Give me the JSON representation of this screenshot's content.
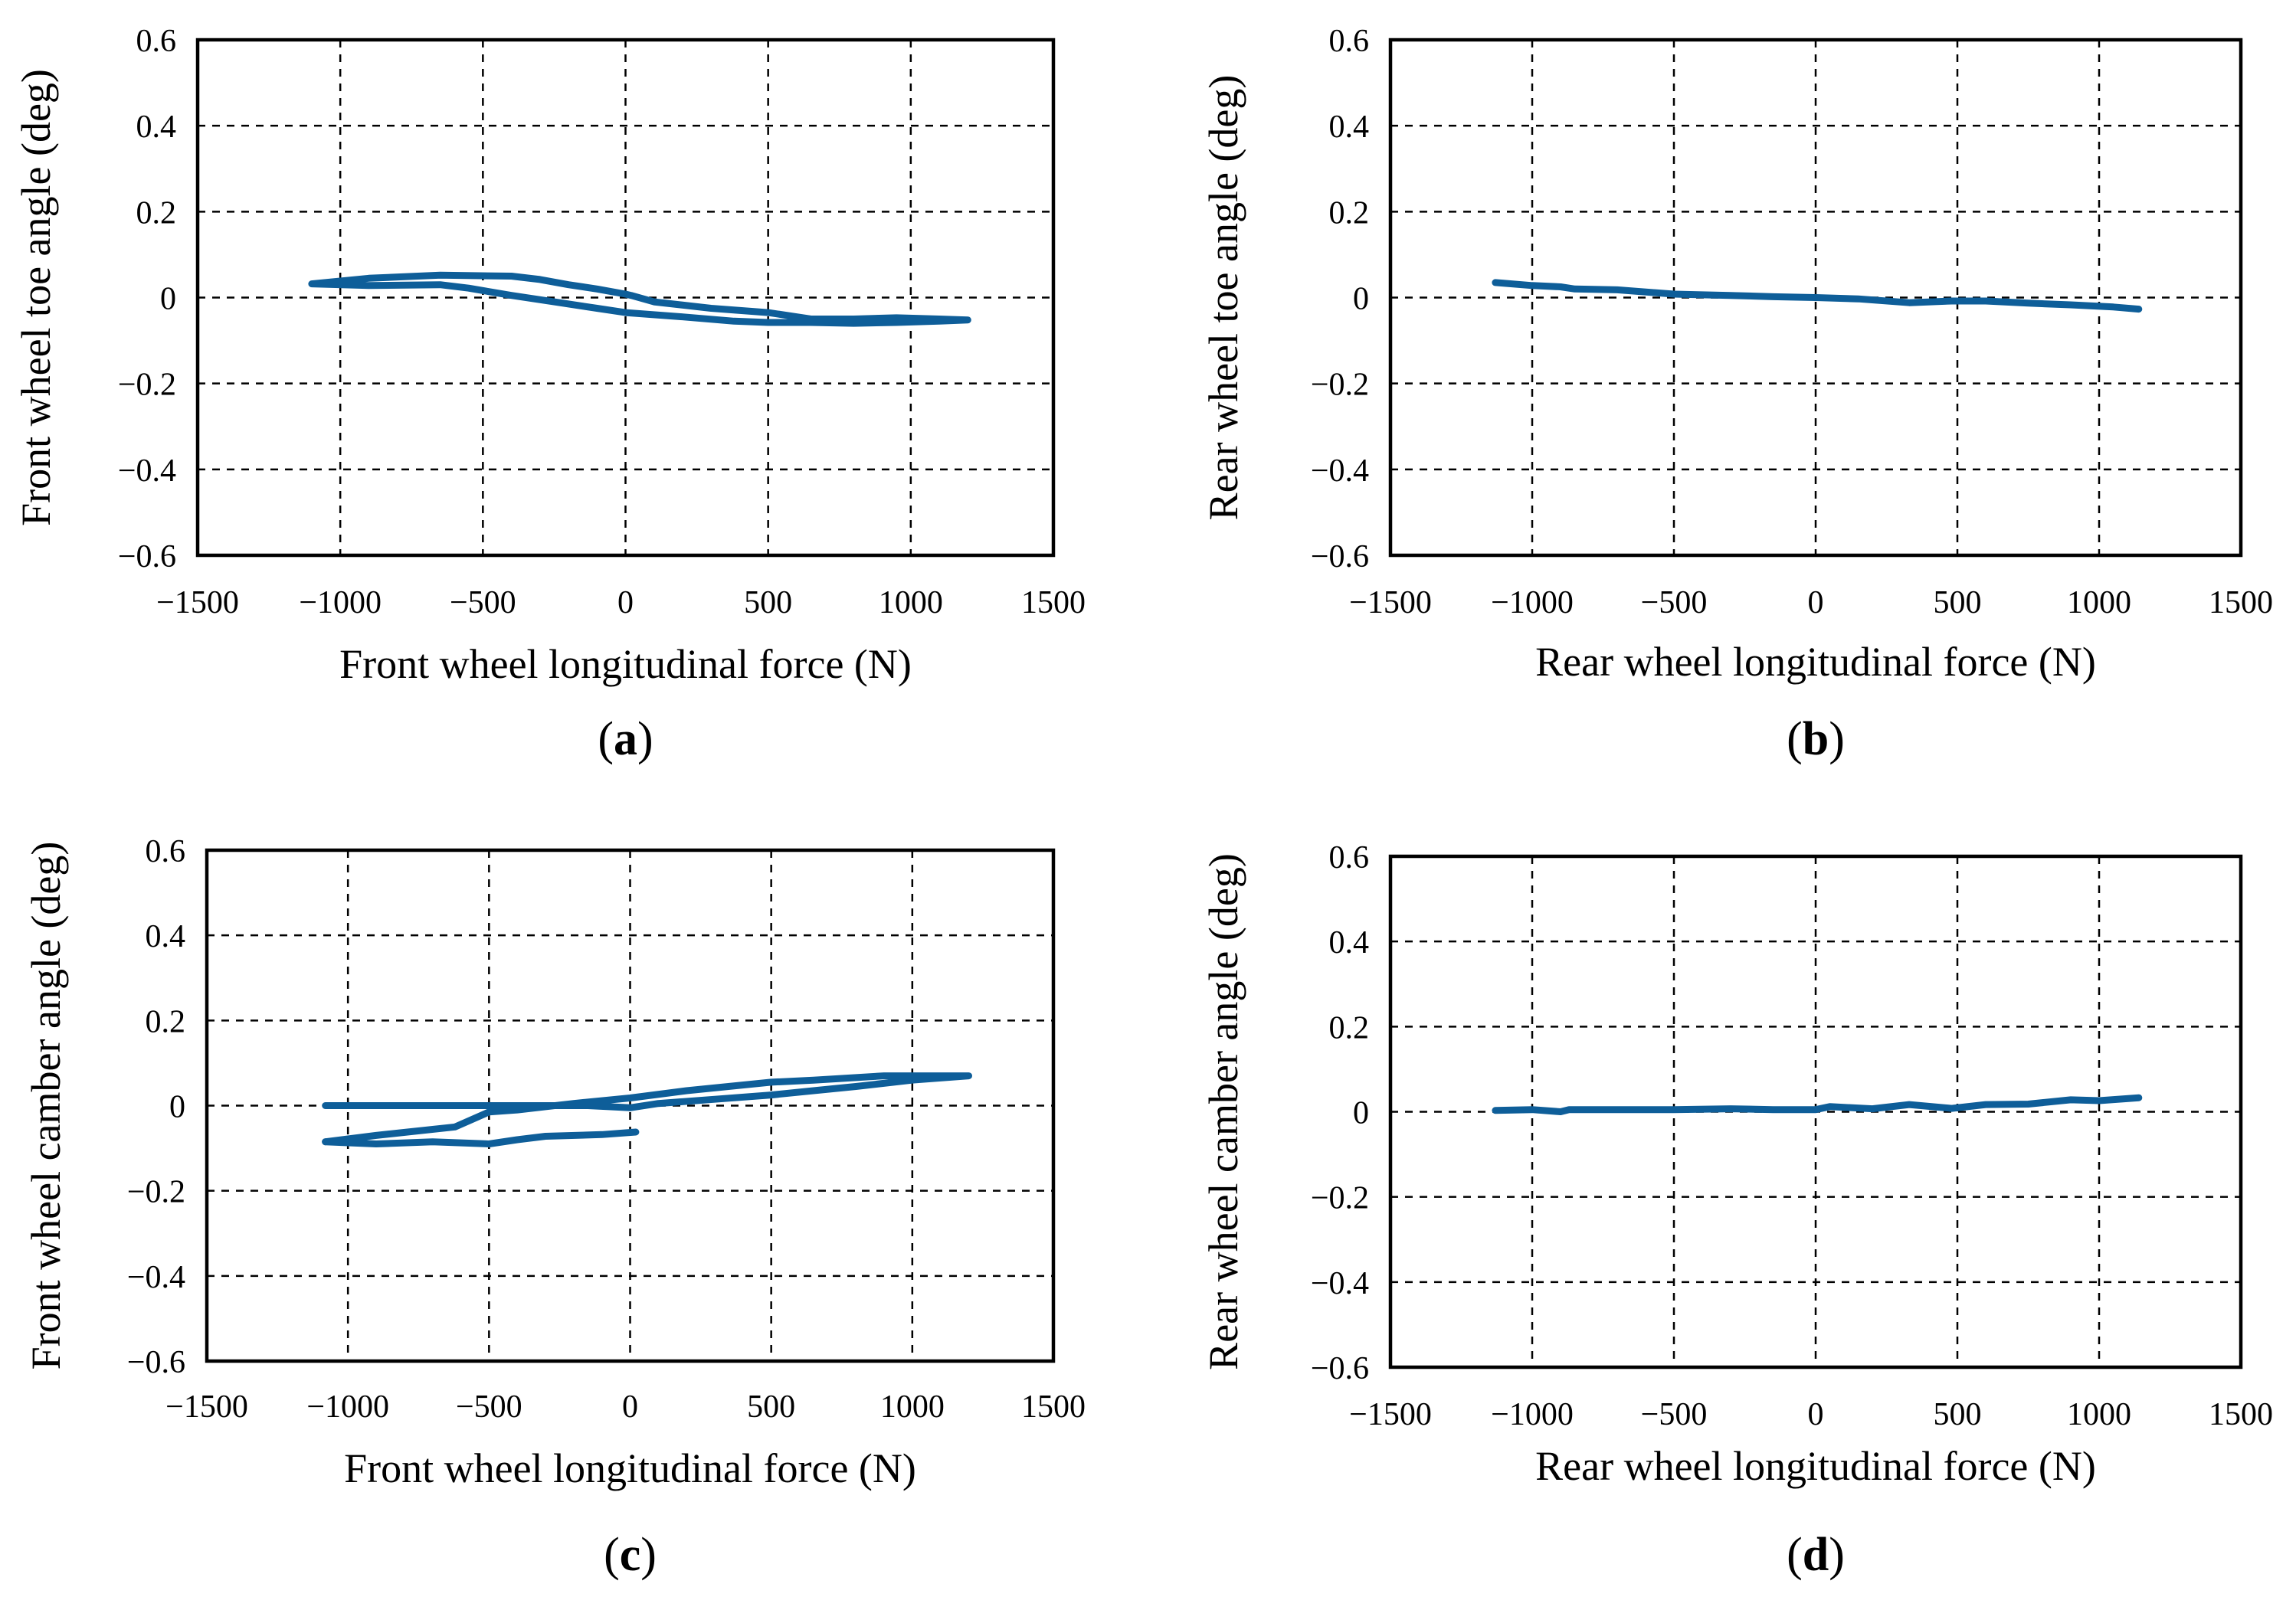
{
  "chart_data": [
    {
      "type": "line",
      "panel_label": "a",
      "xlabel": "Front wheel longitudinal force (N)",
      "ylabel": "Front wheel toe angle (deg)",
      "xlim": [
        -1500,
        1500
      ],
      "ylim": [
        -0.6,
        0.6
      ],
      "x_ticks": [
        -1500,
        -1000,
        -500,
        0,
        500,
        1000,
        1500
      ],
      "y_ticks": [
        0.6,
        0.4,
        0.2,
        0,
        -0.2,
        -0.4,
        -0.6
      ],
      "x_tick_labels": [
        "−1500",
        "−1000",
        "−500",
        "0",
        "500",
        "1000",
        "1500"
      ],
      "y_tick_labels": [
        "0.6",
        "0.4",
        "0.2",
        "0",
        "−0.2",
        "−0.4",
        "−0.6"
      ],
      "grid": true,
      "series": [
        {
          "name": "toe angle",
          "x": [
            -1100,
            -900,
            -650,
            -400,
            -300,
            -200,
            -100,
            0,
            20,
            100,
            300,
            500,
            650,
            800,
            950,
            1100,
            1200,
            1100,
            950,
            800,
            650,
            500,
            380,
            200,
            0,
            -100,
            -250,
            -400,
            -550,
            -650,
            -900,
            -1100
          ],
          "y": [
            0.032,
            0.045,
            0.052,
            0.05,
            0.042,
            0.03,
            0.02,
            0.008,
            0.005,
            -0.01,
            -0.025,
            -0.035,
            -0.05,
            -0.05,
            -0.047,
            -0.05,
            -0.052,
            -0.055,
            -0.058,
            -0.06,
            -0.058,
            -0.058,
            -0.055,
            -0.045,
            -0.035,
            -0.025,
            -0.01,
            0.005,
            0.022,
            0.03,
            0.028,
            0.032
          ]
        }
      ],
      "colors": {
        "series": "#0e5e99"
      }
    },
    {
      "type": "line",
      "panel_label": "b",
      "xlabel": "Rear wheel longitudinal force (N)",
      "ylabel": "Rear wheel toe angle (deg)",
      "xlim": [
        -1500,
        1500
      ],
      "ylim": [
        -0.6,
        0.6
      ],
      "x_ticks": [
        -1500,
        -1000,
        -500,
        0,
        500,
        1000,
        1500
      ],
      "y_ticks": [
        0.6,
        0.4,
        0.2,
        0,
        -0.2,
        -0.4,
        -0.6
      ],
      "x_tick_labels": [
        "−1500",
        "−1000",
        "−500",
        "0",
        "500",
        "1000",
        "1500"
      ],
      "y_tick_labels": [
        "0.6",
        "0.4",
        "0.2",
        "0",
        "−0.2",
        "−0.4",
        "−0.6"
      ],
      "grid": true,
      "series": [
        {
          "name": "toe angle",
          "x": [
            -1130,
            -1000,
            -900,
            -850,
            -700,
            -500,
            -300,
            -150,
            0,
            150,
            330,
            480,
            600,
            750,
            900,
            1050,
            1140
          ],
          "y": [
            0.035,
            0.028,
            0.025,
            0.02,
            0.018,
            0.008,
            0.005,
            0.002,
            0.0,
            -0.003,
            -0.012,
            -0.008,
            -0.008,
            -0.013,
            -0.017,
            -0.022,
            -0.027
          ]
        }
      ],
      "colors": {
        "series": "#0e5e99"
      }
    },
    {
      "type": "line",
      "panel_label": "c",
      "xlabel": "Front wheel longitudinal force (N)",
      "ylabel": "Front wheel camber angle (deg)",
      "xlim": [
        -1500,
        1500
      ],
      "ylim": [
        -0.6,
        0.6
      ],
      "x_ticks": [
        -1500,
        -1000,
        -500,
        0,
        500,
        1000,
        1500
      ],
      "y_ticks": [
        0.6,
        0.4,
        0.2,
        0,
        -0.2,
        -0.4,
        -0.6
      ],
      "x_tick_labels": [
        "−1500",
        "−1000",
        "−500",
        "0",
        "500",
        "1000",
        "1500"
      ],
      "y_tick_labels": [
        "0.6",
        "0.4",
        "0.2",
        "0",
        "−0.2",
        "−0.4",
        "−0.6"
      ],
      "grid": true,
      "series": [
        {
          "name": "camber angle",
          "x": [
            -1080,
            -900,
            -620,
            -500,
            -400,
            -200,
            0,
            200,
            500,
            650,
            900,
            1100,
            1200,
            1000,
            800,
            650,
            500,
            300,
            100,
            0,
            -150,
            -250,
            -500,
            -650,
            -850,
            -1080
          ],
          "y": [
            -0.085,
            -0.07,
            -0.05,
            -0.015,
            -0.01,
            0.005,
            0.018,
            0.035,
            0.055,
            0.06,
            0.07,
            0.07,
            0.07,
            0.06,
            0.045,
            0.035,
            0.025,
            0.015,
            0.005,
            -0.005,
            0.0,
            0.0,
            0.0,
            0.0,
            0.0,
            0.0
          ],
          "segment_b_x": [
            20,
            -100,
            -300,
            -400,
            -500,
            -700,
            -900,
            -1080
          ],
          "segment_b_y": [
            -0.062,
            -0.068,
            -0.072,
            -0.08,
            -0.09,
            -0.085,
            -0.09,
            -0.085
          ]
        }
      ],
      "colors": {
        "series": "#0e5e99"
      }
    },
    {
      "type": "line",
      "panel_label": "d",
      "xlabel": "Rear wheel longitudinal force (N)",
      "ylabel": "Rear wheel camber angle (deg)",
      "xlim": [
        -1500,
        1500
      ],
      "ylim": [
        -0.6,
        0.6
      ],
      "x_ticks": [
        -1500,
        -1000,
        -500,
        0,
        500,
        1000,
        1500
      ],
      "y_ticks": [
        0.6,
        0.4,
        0.2,
        0,
        -0.2,
        -0.4,
        -0.6
      ],
      "x_tick_labels": [
        "−1500",
        "−1000",
        "−500",
        "0",
        "500",
        "1000",
        "1500"
      ],
      "y_tick_labels": [
        "0.6",
        "0.4",
        "0.2",
        "0",
        "−0.2",
        "−0.4",
        "−0.6"
      ],
      "grid": true,
      "series": [
        {
          "name": "camber angle",
          "x": [
            -1130,
            -1000,
            -900,
            -870,
            -700,
            -500,
            -300,
            -150,
            0,
            50,
            200,
            330,
            480,
            600,
            750,
            900,
            1000,
            1140
          ],
          "y": [
            0.003,
            0.005,
            0.0,
            0.005,
            0.005,
            0.005,
            0.007,
            0.005,
            0.005,
            0.012,
            0.007,
            0.017,
            0.008,
            0.017,
            0.018,
            0.028,
            0.026,
            0.033
          ]
        }
      ],
      "colors": {
        "series": "#0e5e99"
      }
    }
  ]
}
